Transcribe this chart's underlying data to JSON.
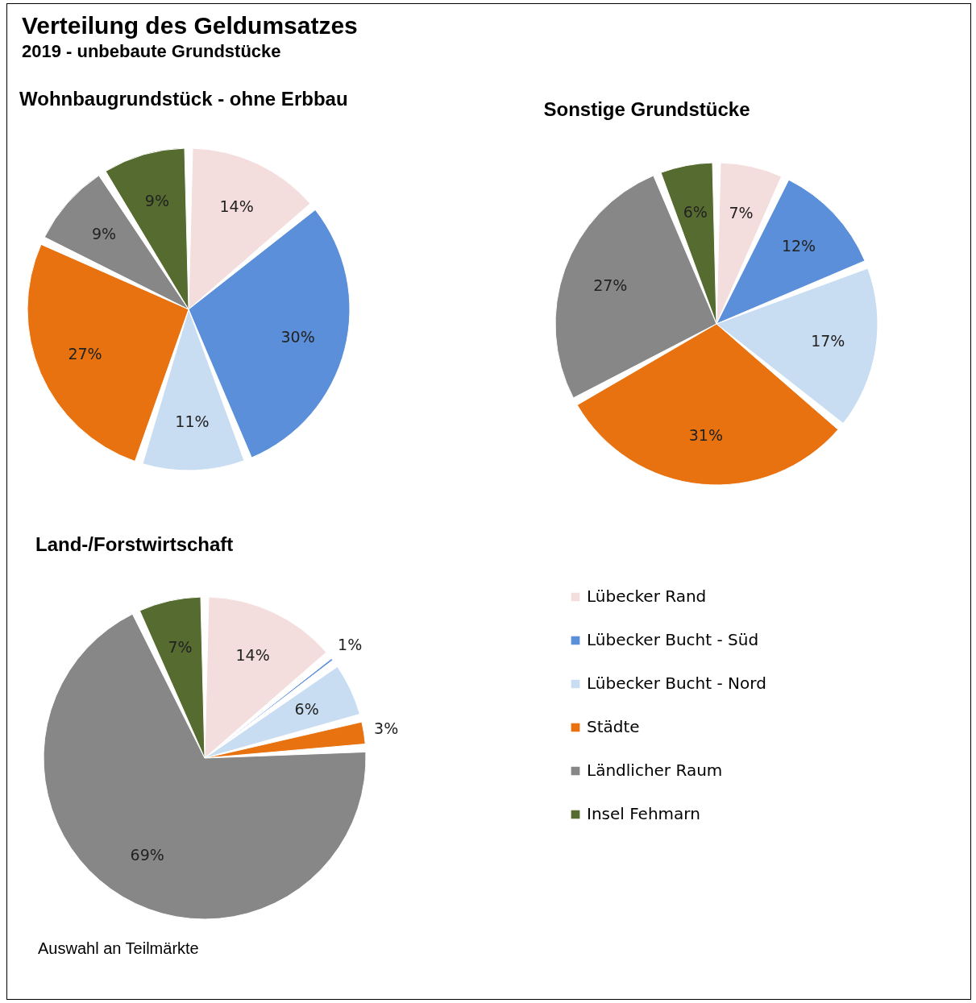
{
  "chart_data": [
    {
      "type": "pie",
      "title": "Wohnbaugrundstück - ohne Erbbau",
      "annotations": [
        "Verteilung des Geldumsatzes",
        "2019 - unbebaute Grundstücke"
      ],
      "categories": [
        null,
        null,
        null,
        null,
        null,
        null
      ],
      "values": [
        14,
        30,
        11,
        27,
        9,
        9
      ],
      "value_labels": [
        "14%",
        "30%",
        "11%",
        "27%",
        "9%",
        "9%"
      ],
      "colors": [
        "#f4dedd",
        "#5b8fd9",
        "#c9ddf2",
        "#e87210",
        "#878787",
        "#556b2f"
      ],
      "legend": false
    },
    {
      "type": "pie",
      "title": "Sonstige Grundstücke",
      "categories": [
        null,
        null,
        null,
        null,
        null,
        null
      ],
      "values": [
        7,
        12,
        17,
        31,
        27,
        6
      ],
      "value_labels": [
        "7%",
        "12%",
        "17%",
        "31%",
        "27%",
        "6%"
      ],
      "colors": [
        "#f4dedd",
        "#5b8fd9",
        "#c9ddf2",
        "#e87210",
        "#878787",
        "#556b2f"
      ],
      "legend": false
    },
    {
      "type": "pie",
      "title": "Land-/Forstwirtschaft",
      "annotations": [
        "Auswahl an Teilmärkte"
      ],
      "categories": [
        "Lübecker Rand",
        "Lübecker Bucht - Süd",
        "Lübecker Bucht - Nord",
        "Städte",
        "Ländlicher Raum",
        "Insel Fehmarn"
      ],
      "values": [
        14,
        1,
        6,
        3,
        69,
        7
      ],
      "value_labels": [
        "14%",
        "1%",
        "6%",
        "3%",
        "69%",
        "7%"
      ],
      "colors": [
        "#f4dedd",
        "#5b8fd9",
        "#c9ddf2",
        "#e87210",
        "#878787",
        "#556b2f"
      ],
      "legend": "right"
    }
  ]
}
